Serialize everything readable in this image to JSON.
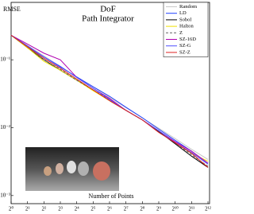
{
  "chart_data": {
    "type": "line",
    "title": "DoF",
    "subtitle": "Path Integrator",
    "y_label": "RMSE",
    "x_label": "Number of Points",
    "log_x": true,
    "log_y": true,
    "legend": "top-right",
    "x": [
      1,
      2,
      4,
      8,
      16,
      32,
      64,
      128,
      256,
      512,
      1024,
      2048,
      4096
    ],
    "xlim": [
      1,
      4096
    ],
    "xticks": [
      {
        "value": 1,
        "label": "2⁰"
      },
      {
        "value": 2,
        "label": "2¹"
      },
      {
        "value": 4,
        "label": "2²"
      },
      {
        "value": 8,
        "label": "2³"
      },
      {
        "value": 16,
        "label": "2⁴"
      },
      {
        "value": 32,
        "label": "2⁵"
      },
      {
        "value": 64,
        "label": "2⁶"
      },
      {
        "value": 128,
        "label": "2⁷"
      },
      {
        "value": 256,
        "label": "2⁸"
      },
      {
        "value": 512,
        "label": "2⁹"
      },
      {
        "value": 1024,
        "label": "2¹⁰"
      },
      {
        "value": 2048,
        "label": "2¹¹"
      },
      {
        "value": 4096,
        "label": "2¹²"
      }
    ],
    "ylim": [
      0.00076,
      0.7
    ],
    "yticks": [
      {
        "value": 0.1,
        "label": "10⁻¹"
      },
      {
        "value": 0.01,
        "label": "10⁻²"
      },
      {
        "value": 0.001,
        "label": "10⁻³"
      }
    ],
    "series": [
      {
        "name": "Random",
        "color": "#c8c8c8",
        "dash": false,
        "values": [
          0.23,
          0.162,
          0.114,
          0.08,
          0.056,
          0.04,
          0.028,
          0.0197,
          0.0139,
          0.0098,
          0.0069,
          0.0048,
          0.0034
        ]
      },
      {
        "name": "LD",
        "color": "#2040ff",
        "dash": false,
        "values": [
          0.23,
          0.155,
          0.11,
          0.078,
          0.056,
          0.04,
          0.029,
          0.02,
          0.014,
          0.0095,
          0.0065,
          0.0045,
          0.003
        ]
      },
      {
        "name": "Sobol",
        "color": "#000000",
        "dash": false,
        "values": [
          0.23,
          0.15,
          0.1,
          0.07,
          0.05,
          0.036,
          0.025,
          0.018,
          0.013,
          0.0088,
          0.0058,
          0.0038,
          0.0026
        ]
      },
      {
        "name": "Halton",
        "color": "#f0e000",
        "dash": false,
        "values": [
          0.23,
          0.15,
          0.095,
          0.07,
          0.05,
          0.035,
          0.025,
          0.018,
          0.013,
          0.009,
          0.006,
          0.0042,
          0.0032
        ]
      },
      {
        "name": "Z",
        "color": "#606060",
        "dash": true,
        "values": [
          0.23,
          0.155,
          0.1,
          0.072,
          0.05,
          0.036,
          0.026,
          0.018,
          0.013,
          0.009,
          0.006,
          0.004,
          0.0027
        ]
      },
      {
        "name": "SZ-16D",
        "color": "#b000b0",
        "dash": false,
        "values": [
          0.23,
          0.17,
          0.125,
          0.1,
          0.055,
          0.038,
          0.027,
          0.018,
          0.013,
          0.009,
          0.0062,
          0.0045,
          0.003
        ]
      },
      {
        "name": "SZ-G",
        "color": "#5050ff",
        "dash": false,
        "values": [
          0.23,
          0.16,
          0.11,
          0.08,
          0.055,
          0.038,
          0.026,
          0.018,
          0.013,
          0.009,
          0.006,
          0.0043,
          0.0029
        ]
      },
      {
        "name": "SZ-Z",
        "color": "#e02020",
        "dash": false,
        "values": [
          0.23,
          0.155,
          0.105,
          0.075,
          0.052,
          0.036,
          0.025,
          0.018,
          0.013,
          0.0085,
          0.006,
          0.0042,
          0.0026
        ]
      }
    ]
  }
}
